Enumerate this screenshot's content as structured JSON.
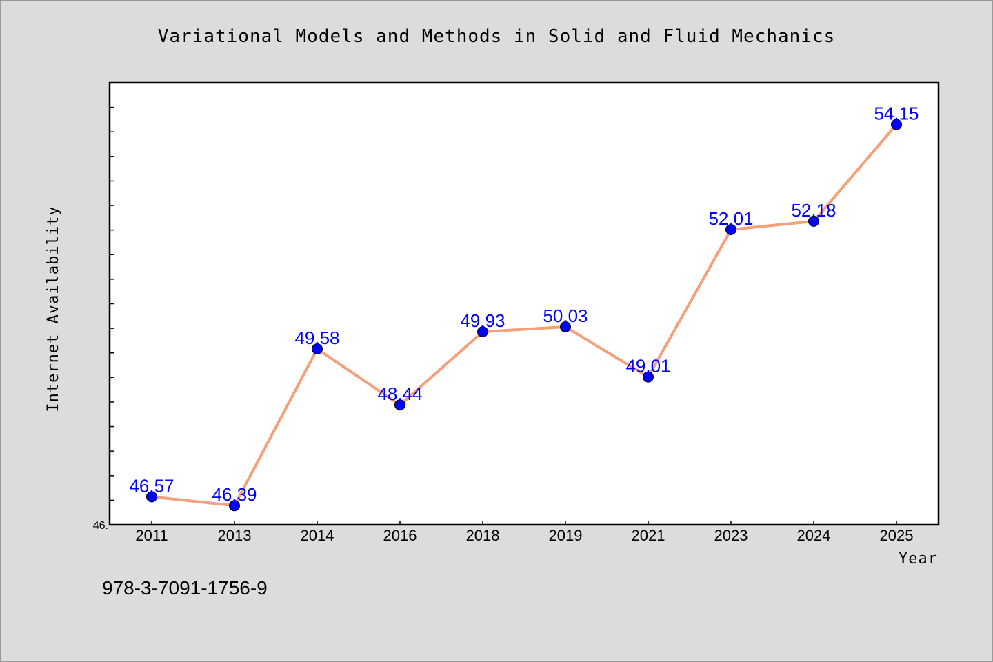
{
  "colors": {
    "figure_background": "#dcdcdc",
    "plot_background": "#ffffff",
    "line": "#f4a07a",
    "marker": "#0000ff",
    "data_label": "#0000ff",
    "axis": "#000000"
  },
  "footer": {
    "isbn": "978-3-7091-1756-9"
  },
  "chart_data": {
    "type": "line",
    "title": "Variational Models and Methods in Solid and Fluid Mechanics",
    "xlabel": "Year",
    "ylabel": "Internet Availability",
    "categories": [
      "2011",
      "2013",
      "2014",
      "2016",
      "2018",
      "2019",
      "2021",
      "2023",
      "2024",
      "2025"
    ],
    "series": [
      {
        "values": [
          46.57,
          46.39,
          49.58,
          48.44,
          49.93,
          50.03,
          49.01,
          52.01,
          52.18,
          54.15
        ]
      }
    ],
    "data_labels": [
      "46.57",
      "46.39",
      "49.58",
      "48.44",
      "49.93",
      "50.03",
      "49.01",
      "52.01",
      "52.18",
      "54.15"
    ],
    "y_tick_label": "46.",
    "ylim": [
      46.0,
      55.0
    ],
    "y_minor_step": 0.5,
    "grid": false,
    "legend": false
  }
}
